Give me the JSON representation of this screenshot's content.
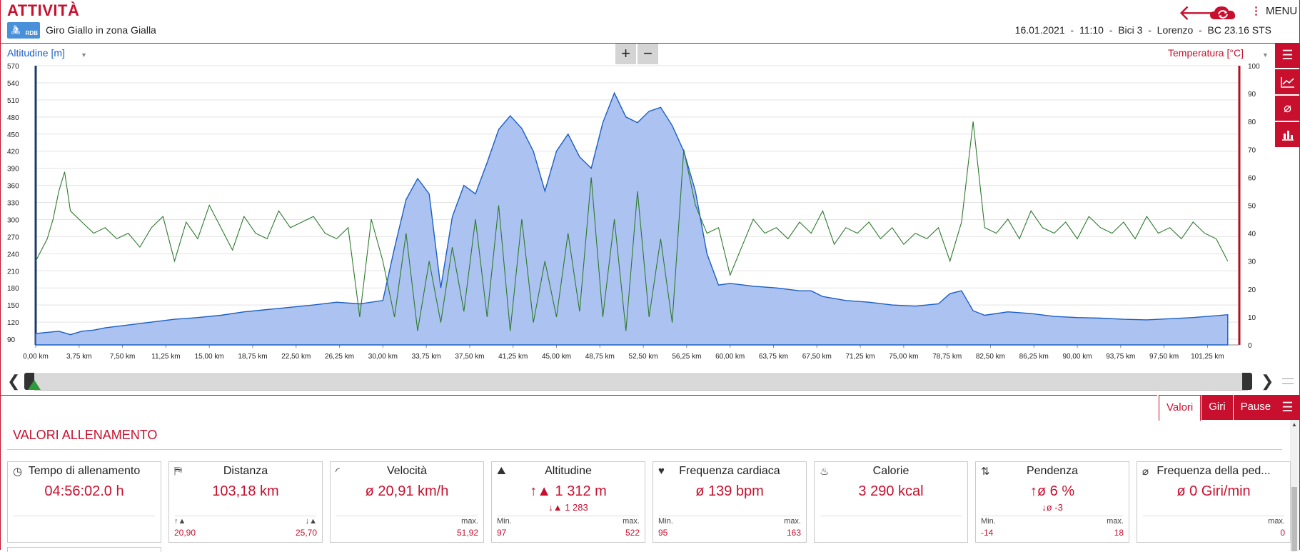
{
  "header": {
    "title": "ATTIVITÀ",
    "logo_text": "RDB",
    "subtitle": "Giro Giallo in zona Gialla",
    "date": "16.01.2021",
    "time": "11:10",
    "bike": "Bici 3",
    "user": "Lorenzo",
    "device": "BC 23.16 STS",
    "menu_label": "MENU"
  },
  "chart_controls": {
    "left_axis_label": "Altitudine [m]",
    "right_axis_label": "Temperatura [°C]",
    "zoom_in": "+",
    "zoom_out": "−"
  },
  "chart_data": {
    "type": "area",
    "x_unit": "km",
    "x_ticks": [
      "0,00 km",
      "3,75 km",
      "7,50 km",
      "11,25 km",
      "15,00 km",
      "18,75 km",
      "22,50 km",
      "26,25 km",
      "30,00 km",
      "33,75 km",
      "37,50 km",
      "41,25 km",
      "45,00 km",
      "48,75 km",
      "52,50 km",
      "56,25 km",
      "60,00 km",
      "63,75 km",
      "67,50 km",
      "71,25 km",
      "75,00 km",
      "78,75 km",
      "82,50 km",
      "86,25 km",
      "90,00 km",
      "93,75 km",
      "97,50 km",
      "101,25 km"
    ],
    "y_left_ticks": [
      570,
      540,
      510,
      480,
      450,
      420,
      390,
      360,
      330,
      300,
      270,
      240,
      210,
      180,
      150,
      120,
      90
    ],
    "y_left_range": [
      80,
      570
    ],
    "y_right_ticks": [
      100,
      90,
      80,
      70,
      60,
      50,
      40,
      30,
      20,
      10,
      0
    ],
    "y_right_range": [
      0,
      100
    ],
    "series": [
      {
        "color": "#1a5fc4",
        "fill": "#a8bff0",
        "x": [
          0,
          1,
          2,
          3,
          4,
          5,
          6,
          8,
          10,
          12,
          14,
          16,
          18,
          20,
          22,
          24,
          26,
          28,
          30,
          31,
          32,
          33,
          34,
          35,
          36,
          37,
          38,
          39,
          40,
          41,
          42,
          43,
          44,
          45,
          46,
          47,
          48,
          49,
          50,
          51,
          52,
          53,
          54,
          55,
          56,
          57,
          58,
          59,
          60,
          62,
          64,
          66,
          67,
          68,
          70,
          72,
          74,
          76,
          78,
          79,
          80,
          81,
          82,
          84,
          86,
          88,
          90,
          92,
          94,
          96,
          98,
          100,
          103
        ],
        "y": [
          100,
          102,
          104,
          98,
          104,
          106,
          110,
          115,
          120,
          125,
          128,
          132,
          138,
          142,
          146,
          150,
          155,
          152,
          158,
          250,
          335,
          372,
          345,
          180,
          305,
          360,
          345,
          400,
          458,
          482,
          460,
          420,
          350,
          420,
          450,
          410,
          390,
          470,
          522,
          480,
          470,
          490,
          497,
          465,
          420,
          350,
          240,
          185,
          188,
          183,
          180,
          175,
          175,
          165,
          158,
          155,
          150,
          148,
          152,
          170,
          175,
          140,
          132,
          138,
          135,
          130,
          128,
          127,
          125,
          124,
          126,
          128,
          133
        ]
      },
      {
        "color": "#2d7a2d",
        "fill": "none",
        "x": [
          0,
          1,
          1.5,
          2,
          2.5,
          3,
          4,
          5,
          6,
          7,
          8,
          9,
          10,
          11,
          12,
          13,
          14,
          15,
          16,
          17,
          18,
          19,
          20,
          21,
          22,
          23,
          24,
          25,
          26,
          27,
          28,
          29,
          30,
          31,
          32,
          33,
          34,
          35,
          36,
          37,
          38,
          39,
          40,
          41,
          42,
          43,
          44,
          45,
          46,
          47,
          48,
          49,
          50,
          51,
          52,
          53,
          54,
          55,
          56,
          57,
          58,
          59,
          60,
          61,
          62,
          63,
          64,
          65,
          66,
          67,
          68,
          69,
          70,
          71,
          72,
          73,
          74,
          75,
          76,
          77,
          78,
          79,
          80,
          81,
          82,
          83,
          84,
          85,
          86,
          87,
          88,
          89,
          90,
          91,
          92,
          93,
          94,
          95,
          96,
          97,
          98,
          99,
          100,
          101,
          102,
          103
        ],
        "y": [
          30,
          38,
          45,
          55,
          62,
          48,
          44,
          40,
          42,
          38,
          40,
          35,
          42,
          46,
          30,
          44,
          38,
          50,
          42,
          34,
          46,
          40,
          38,
          48,
          42,
          44,
          46,
          40,
          38,
          42,
          10,
          45,
          30,
          10,
          40,
          5,
          30,
          8,
          35,
          12,
          45,
          10,
          50,
          5,
          45,
          8,
          30,
          10,
          40,
          12,
          60,
          10,
          45,
          5,
          55,
          10,
          38,
          8,
          70,
          50,
          40,
          42,
          25,
          35,
          45,
          40,
          42,
          38,
          44,
          40,
          48,
          36,
          42,
          40,
          44,
          38,
          42,
          36,
          40,
          38,
          42,
          30,
          44,
          80,
          42,
          40,
          45,
          38,
          48,
          42,
          40,
          44,
          38,
          46,
          42,
          40,
          44,
          38,
          46,
          40,
          42,
          38,
          44,
          40,
          38,
          30
        ]
      }
    ]
  },
  "slider": {
    "prev": "❮",
    "next": "❯"
  },
  "tabs": [
    {
      "label": "Valori"
    },
    {
      "label": "Giri"
    },
    {
      "label": "Pause"
    }
  ],
  "section_title": "VALORI ALLENAMENTO",
  "cards": [
    {
      "icon": "stopwatch-icon",
      "title": "Tempo di allenamento",
      "value": "04:56:02.0 h",
      "sub": "",
      "left_label": "",
      "left_value": "",
      "right_label": "",
      "right_value": ""
    },
    {
      "icon": "signpost-icon",
      "title": "Distanza",
      "value": "103,18 km",
      "sub": "",
      "left_label": "↑▲",
      "left_value": "20,90",
      "right_label": "↓▲",
      "right_value": "25,70"
    },
    {
      "icon": "speedometer-icon",
      "title": "Velocità",
      "value": "ø 20,91 km/h",
      "sub": "",
      "left_label": "",
      "left_value": "",
      "right_label": "max.",
      "right_value": "51,92"
    },
    {
      "icon": "mountain-icon",
      "title": "Altitudine",
      "value": "↑▲ 1 312 m",
      "sub": "↓▲ 1 283",
      "left_label": "Min.",
      "left_value": "97",
      "right_label": "max.",
      "right_value": "522"
    },
    {
      "icon": "heart-icon",
      "title": "Frequenza cardiaca",
      "value": "ø 139 bpm",
      "sub": "",
      "left_label": "Min.",
      "left_value": "95",
      "right_label": "max.",
      "right_value": "163"
    },
    {
      "icon": "flame-icon",
      "title": "Calorie",
      "value": "3 290 kcal",
      "sub": "",
      "left_label": "",
      "left_value": "",
      "right_label": "",
      "right_value": ""
    },
    {
      "icon": "slope-icon",
      "title": "Pendenza",
      "value": "↑ø 6 %",
      "sub": "↓ø -3",
      "left_label": "Min.",
      "left_value": "-14",
      "right_label": "max.",
      "right_value": "18"
    },
    {
      "icon": "cadence-icon",
      "title": "Frequenza della ped...",
      "value": "ø 0 Giri/min",
      "sub": "",
      "left_label": "",
      "left_value": "",
      "right_label": "max.",
      "right_value": "0"
    }
  ]
}
